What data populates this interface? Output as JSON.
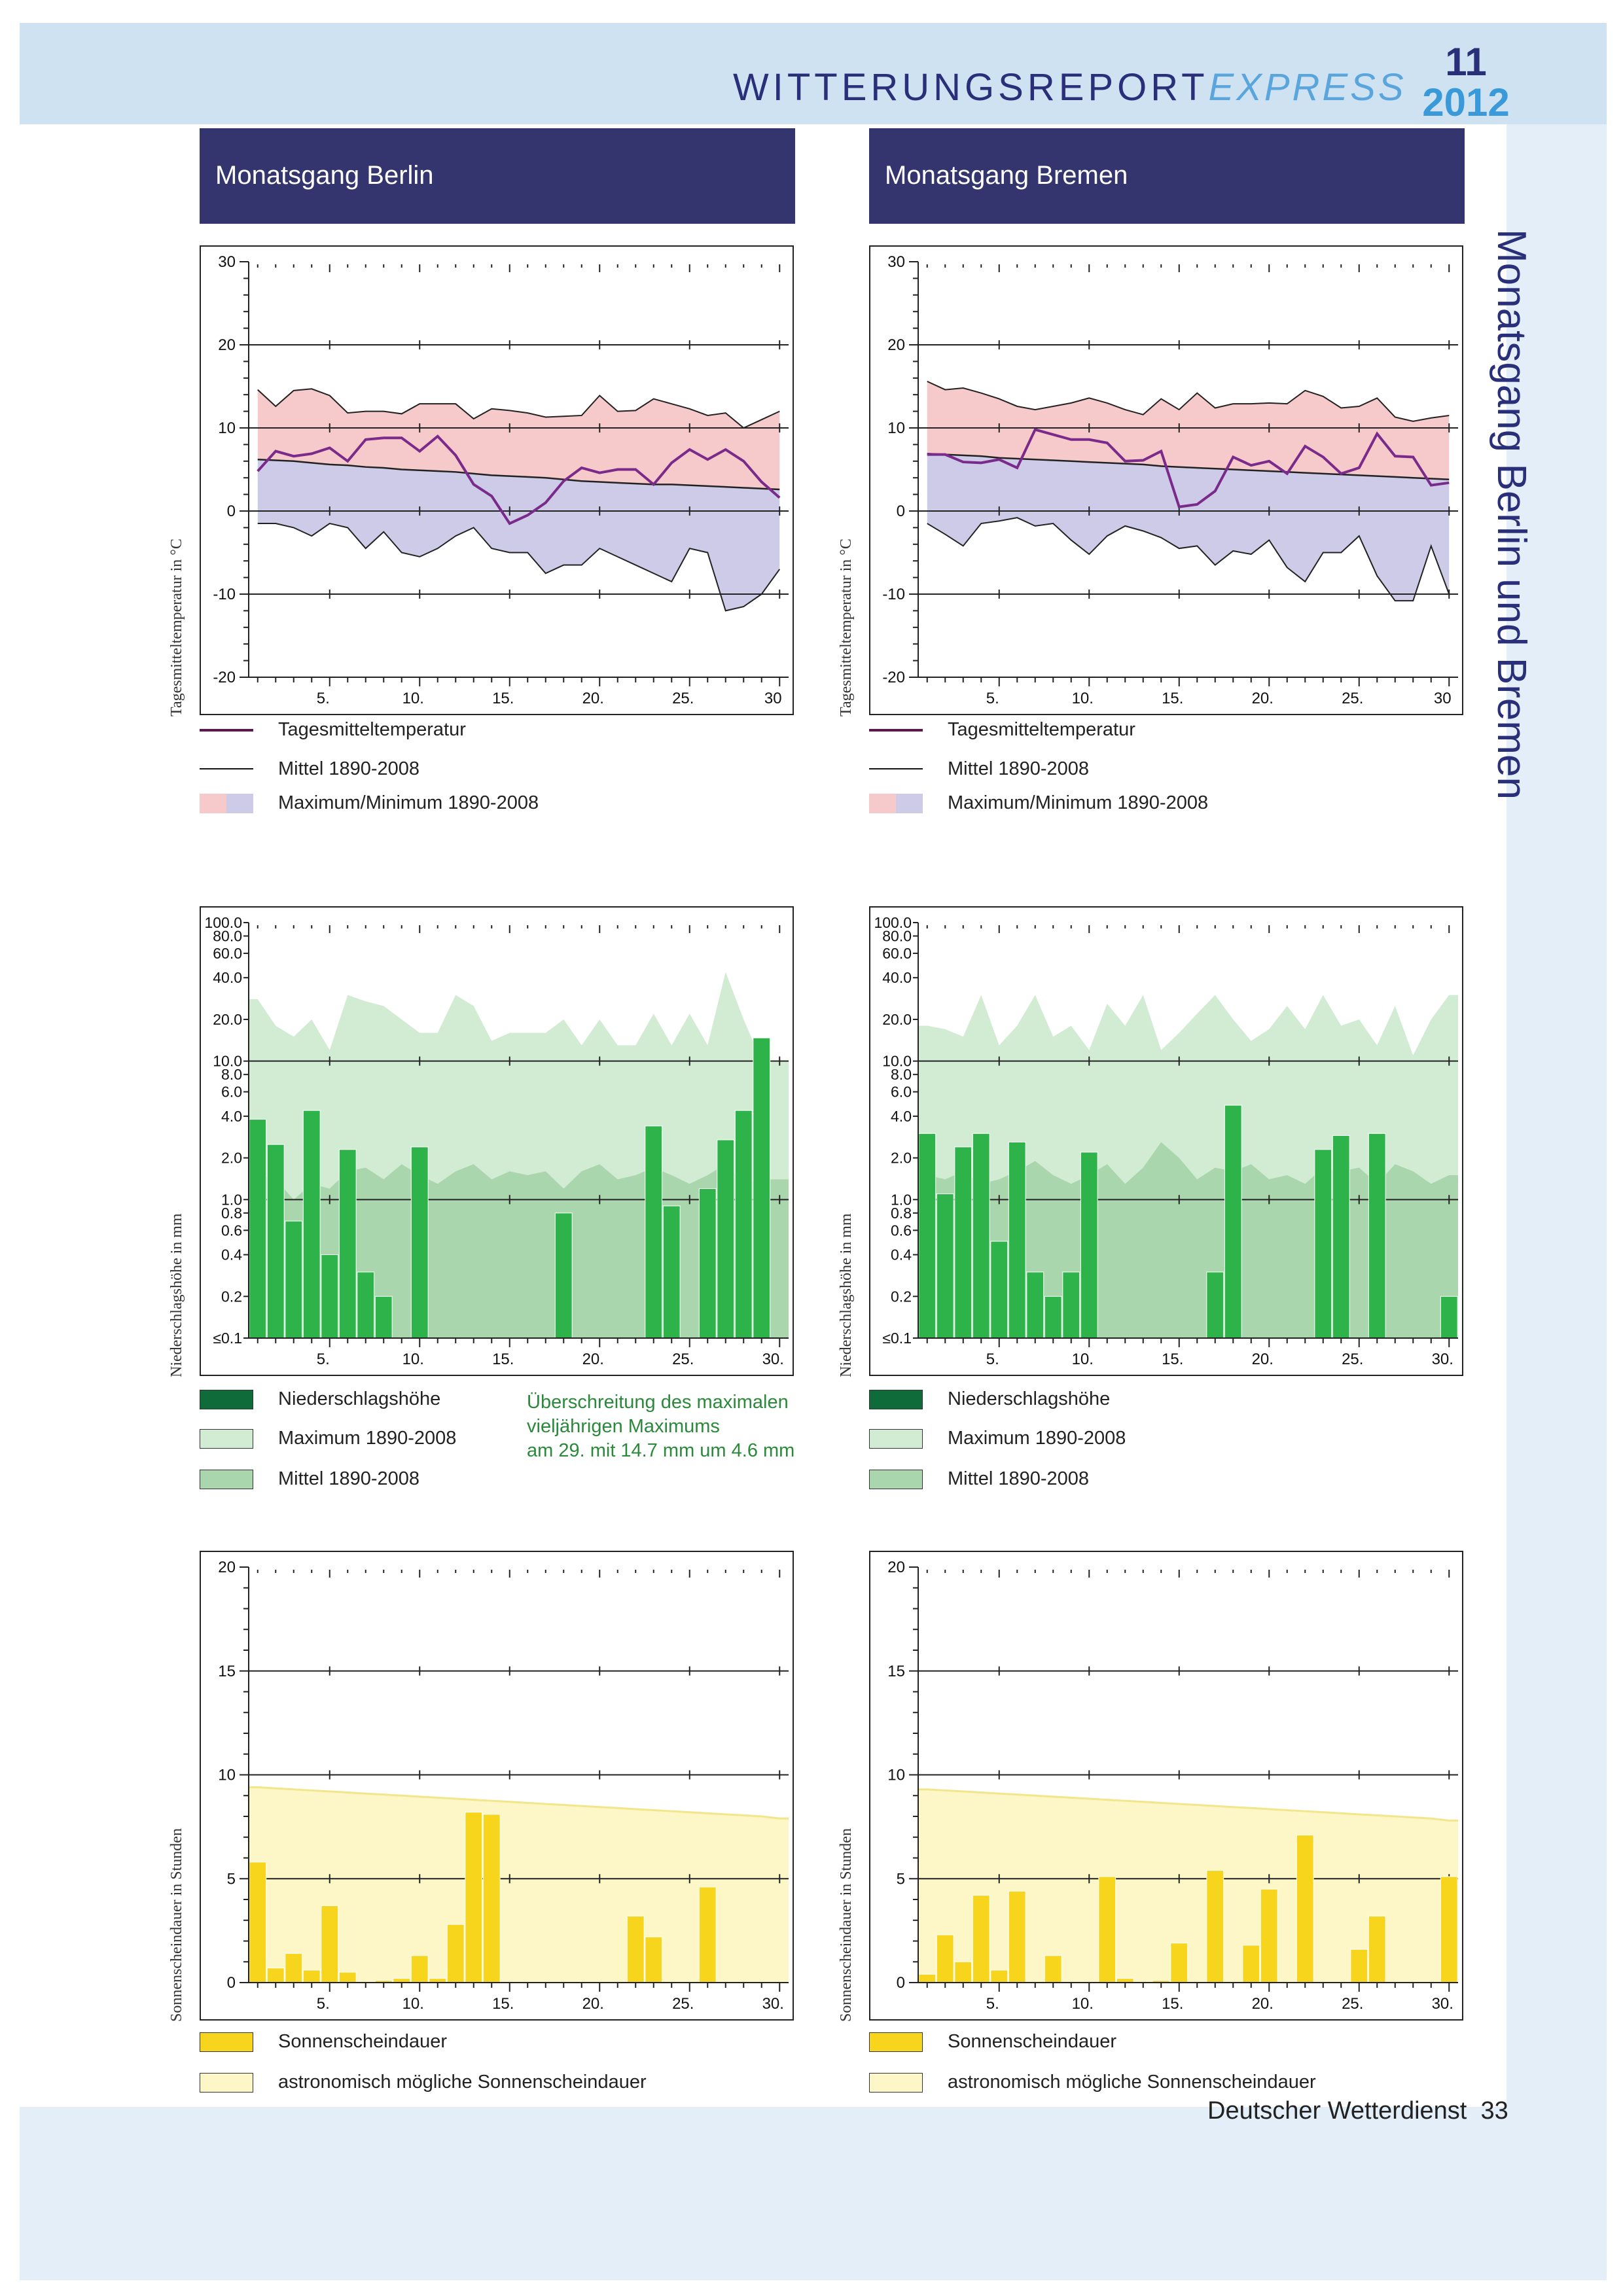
{
  "header": {
    "title_main": "WITTERUNGSREPORT",
    "title_italic": "EXPRESS",
    "issue_number": "11",
    "issue_year": "2012"
  },
  "side_title": "Monatsgang Berlin und Bremen",
  "columns": [
    {
      "id": "berlin",
      "heading": "Monatsgang Berlin"
    },
    {
      "id": "bremen",
      "heading": "Monatsgang Bremen"
    }
  ],
  "legends": {
    "temperature": [
      "Tagesmitteltemperatur",
      "Mittel 1890-2008",
      "Maximum/Minimum 1890-2008"
    ],
    "precipitation": [
      "Niederschlagshöhe",
      "Maximum 1890-2008",
      "Mittel 1890-2008"
    ],
    "sunshine": [
      "Sonnenscheindauer",
      "astronomisch mögliche Sonnenscheindauer"
    ]
  },
  "annotation": {
    "line1": "Überschreitung des maximalen",
    "line2": "vieljährigen Maximums",
    "line3": "am 29. mit 14.7 mm um 4.6 mm"
  },
  "footer": {
    "publisher": "Deutscher Wetterdienst",
    "page": "33"
  },
  "colors": {
    "header_band": "#cfe2f2",
    "column_header": "#34346e",
    "title_dark": "#2a2f7a",
    "title_light": "#3a9ad9",
    "temp_line": "#7a2a8a",
    "temp_max_fill": "#f6c9ca",
    "temp_min_fill": "#cdcbe7",
    "precip_bar": "#2db34a",
    "precip_max_fill": "#d2ecd4",
    "precip_mean_fill": "#a9d6ad",
    "sun_bar": "#f7d51c",
    "sun_possible_fill": "#fdf6c6"
  },
  "chart_data": [
    {
      "id": "berlin-temp",
      "type": "line",
      "ylabel": "Tagesmitteltemperatur in °C",
      "ylim": [
        -20,
        30
      ],
      "yticks": [
        -20,
        -10,
        0,
        10,
        20,
        30
      ],
      "xlim": [
        1,
        30
      ],
      "xticks": [
        5,
        10,
        15,
        20,
        25,
        30
      ],
      "xtick_labels": [
        "5.",
        "10.",
        "15.",
        "20.",
        "25.",
        "30"
      ],
      "x": [
        1,
        2,
        3,
        4,
        5,
        6,
        7,
        8,
        9,
        10,
        11,
        12,
        13,
        14,
        15,
        16,
        17,
        18,
        19,
        20,
        21,
        22,
        23,
        24,
        25,
        26,
        27,
        28,
        29,
        30
      ],
      "series": [
        {
          "name": "Tagesmitteltemperatur",
          "values": [
            4.8,
            7.2,
            6.6,
            6.9,
            7.6,
            6.0,
            8.6,
            8.8,
            8.8,
            7.2,
            9.0,
            6.7,
            3.2,
            1.8,
            -1.5,
            -0.5,
            1.0,
            3.6,
            5.2,
            4.6,
            5.0,
            5.0,
            3.2,
            5.8,
            7.4,
            6.2,
            7.4,
            6.0,
            3.5,
            1.6
          ]
        },
        {
          "name": "Mittel 1890-2008",
          "values": [
            6.2,
            6.1,
            6.0,
            5.8,
            5.6,
            5.5,
            5.3,
            5.2,
            5.0,
            4.9,
            4.8,
            4.7,
            4.5,
            4.3,
            4.2,
            4.1,
            4.0,
            3.8,
            3.6,
            3.5,
            3.4,
            3.3,
            3.2,
            3.2,
            3.1,
            3.0,
            2.9,
            2.8,
            2.7,
            2.6
          ]
        },
        {
          "name": "Maximum 1890-2008",
          "values": [
            14.6,
            12.6,
            14.5,
            14.7,
            13.9,
            11.8,
            12.0,
            12.0,
            11.7,
            12.9,
            12.9,
            12.9,
            11.1,
            12.3,
            12.1,
            11.8,
            11.3,
            11.4,
            11.5,
            13.9,
            12.0,
            12.1,
            13.5,
            12.9,
            12.3,
            11.5,
            11.8,
            10.0,
            11.0,
            12.0
          ]
        },
        {
          "name": "Minimum 1890-2008",
          "values": [
            -1.5,
            -1.5,
            -2.0,
            -3.0,
            -1.5,
            -2.0,
            -4.5,
            -2.5,
            -5.0,
            -5.5,
            -4.5,
            -3.0,
            -2.0,
            -4.5,
            -5.0,
            -5.0,
            -7.5,
            -6.5,
            -6.5,
            -4.5,
            -5.5,
            -6.5,
            -7.5,
            -8.5,
            -4.5,
            -5.0,
            -12.0,
            -11.5,
            -10.0,
            -7.0
          ]
        }
      ]
    },
    {
      "id": "bremen-temp",
      "type": "line",
      "ylabel": "Tagesmitteltemperatur in °C",
      "ylim": [
        -20,
        30
      ],
      "yticks": [
        -20,
        -10,
        0,
        10,
        20,
        30
      ],
      "xlim": [
        1,
        30
      ],
      "xticks": [
        5,
        10,
        15,
        20,
        25,
        30
      ],
      "xtick_labels": [
        "5.",
        "10.",
        "15.",
        "20.",
        "25.",
        "30"
      ],
      "x": [
        1,
        2,
        3,
        4,
        5,
        6,
        7,
        8,
        9,
        10,
        11,
        12,
        13,
        14,
        15,
        16,
        17,
        18,
        19,
        20,
        21,
        22,
        23,
        24,
        25,
        26,
        27,
        28,
        29,
        30
      ],
      "series": [
        {
          "name": "Tagesmitteltemperatur",
          "values": [
            6.8,
            6.8,
            5.9,
            5.8,
            6.2,
            5.2,
            9.8,
            9.2,
            8.6,
            8.6,
            8.2,
            6.0,
            6.1,
            7.2,
            0.5,
            0.8,
            2.4,
            6.5,
            5.5,
            6.0,
            4.5,
            7.8,
            6.5,
            4.5,
            5.2,
            9.3,
            6.6,
            6.5,
            3.1,
            3.4
          ]
        },
        {
          "name": "Mittel 1890-2008",
          "values": [
            6.9,
            6.8,
            6.7,
            6.6,
            6.4,
            6.3,
            6.2,
            6.1,
            6.0,
            5.9,
            5.8,
            5.7,
            5.6,
            5.4,
            5.3,
            5.2,
            5.1,
            5.0,
            4.9,
            4.8,
            4.7,
            4.6,
            4.5,
            4.4,
            4.3,
            4.2,
            4.1,
            4.0,
            3.9,
            3.8
          ]
        },
        {
          "name": "Maximum 1890-2008",
          "values": [
            15.6,
            14.6,
            14.8,
            14.2,
            13.5,
            12.6,
            12.2,
            12.6,
            13.0,
            13.6,
            13.0,
            12.2,
            11.6,
            13.5,
            12.2,
            14.2,
            12.4,
            12.9,
            12.9,
            13.0,
            12.9,
            14.5,
            13.8,
            12.4,
            12.6,
            13.6,
            11.3,
            10.8,
            11.2,
            11.5
          ]
        },
        {
          "name": "Minimum 1890-2008",
          "values": [
            -1.5,
            -2.8,
            -4.2,
            -1.5,
            -1.2,
            -0.8,
            -1.8,
            -1.5,
            -3.5,
            -5.2,
            -3.0,
            -1.8,
            -2.4,
            -3.2,
            -4.5,
            -4.2,
            -6.5,
            -4.8,
            -5.2,
            -3.5,
            -6.8,
            -8.5,
            -5.0,
            -5.0,
            -3.0,
            -7.8,
            -10.8,
            -10.8,
            -4.2,
            -10.0
          ]
        }
      ]
    },
    {
      "id": "berlin-precip",
      "type": "bar",
      "ylabel": "Niederschlagshöhe in mm",
      "yscale": "log",
      "ylim": [
        0.1,
        100.0
      ],
      "ytick_labels": [
        "≤0.1",
        "0.2",
        "0.4",
        "0.6",
        "0.8",
        "1.0",
        "2.0",
        "4.0",
        "6.0",
        "8.0",
        "10.0",
        "20.0",
        "40.0",
        "60.0",
        "80.0",
        "100.0"
      ],
      "ytick_values": [
        0.1,
        0.2,
        0.4,
        0.6,
        0.8,
        1.0,
        2.0,
        4.0,
        6.0,
        8.0,
        10.0,
        20.0,
        40.0,
        60.0,
        80.0,
        100.0
      ],
      "xlim": [
        1,
        30
      ],
      "xticks": [
        5,
        10,
        15,
        20,
        25,
        30
      ],
      "xtick_labels": [
        "5.",
        "10.",
        "15.",
        "20.",
        "25.",
        "30."
      ],
      "x": [
        1,
        2,
        3,
        4,
        5,
        6,
        7,
        8,
        9,
        10,
        11,
        12,
        13,
        14,
        15,
        16,
        17,
        18,
        19,
        20,
        21,
        22,
        23,
        24,
        25,
        26,
        27,
        28,
        29,
        30
      ],
      "series": [
        {
          "name": "Niederschlagshöhe",
          "values": [
            3.8,
            2.5,
            0.7,
            4.4,
            0.4,
            2.3,
            0.3,
            0.2,
            0.1,
            2.4,
            0.1,
            0.1,
            0.1,
            0.1,
            0.1,
            0.1,
            0.1,
            0.8,
            0.1,
            0.1,
            0.1,
            0.1,
            3.4,
            0.9,
            0.1,
            1.2,
            2.7,
            4.4,
            14.7,
            0.1
          ]
        },
        {
          "name": "Maximum 1890-2008",
          "values": [
            28,
            18,
            15,
            20,
            12,
            30,
            27,
            25,
            20,
            16,
            16,
            30,
            25,
            14,
            16,
            16,
            16,
            20,
            13,
            20,
            13,
            13,
            22,
            13,
            22,
            13,
            44,
            20,
            10,
            10
          ]
        },
        {
          "name": "Mittel 1890-2008",
          "values": [
            1.5,
            1.4,
            1.0,
            1.3,
            1.2,
            1.6,
            1.7,
            1.4,
            1.8,
            1.5,
            1.3,
            1.6,
            1.8,
            1.4,
            1.6,
            1.5,
            1.6,
            1.2,
            1.6,
            1.8,
            1.4,
            1.5,
            1.7,
            1.5,
            1.3,
            1.5,
            1.8,
            1.3,
            1.4,
            1.4
          ]
        }
      ]
    },
    {
      "id": "bremen-precip",
      "type": "bar",
      "ylabel": "Niederschlagshöhe in mm",
      "yscale": "log",
      "ylim": [
        0.1,
        100.0
      ],
      "ytick_labels": [
        "≤0.1",
        "0.2",
        "0.4",
        "0.6",
        "0.8",
        "1.0",
        "2.0",
        "4.0",
        "6.0",
        "8.0",
        "10.0",
        "20.0",
        "40.0",
        "60.0",
        "80.0",
        "100.0"
      ],
      "ytick_values": [
        0.1,
        0.2,
        0.4,
        0.6,
        0.8,
        1.0,
        2.0,
        4.0,
        6.0,
        8.0,
        10.0,
        20.0,
        40.0,
        60.0,
        80.0,
        100.0
      ],
      "xlim": [
        1,
        30
      ],
      "xticks": [
        5,
        10,
        15,
        20,
        25,
        30
      ],
      "xtick_labels": [
        "5.",
        "10.",
        "15.",
        "20.",
        "25.",
        "30."
      ],
      "x": [
        1,
        2,
        3,
        4,
        5,
        6,
        7,
        8,
        9,
        10,
        11,
        12,
        13,
        14,
        15,
        16,
        17,
        18,
        19,
        20,
        21,
        22,
        23,
        24,
        25,
        26,
        27,
        28,
        29,
        30
      ],
      "series": [
        {
          "name": "Niederschlagshöhe",
          "values": [
            3.0,
            1.1,
            2.4,
            3.0,
            0.5,
            2.6,
            0.3,
            0.2,
            0.3,
            2.2,
            0.1,
            0.1,
            0.1,
            0.1,
            0.1,
            0.1,
            0.3,
            4.8,
            0.1,
            0.1,
            0.1,
            0.1,
            2.3,
            2.9,
            0.1,
            3.0,
            0.1,
            0.1,
            0.1,
            0.2
          ]
        },
        {
          "name": "Maximum 1890-2008",
          "values": [
            18,
            17,
            15,
            30,
            13,
            18,
            30,
            15,
            18,
            12,
            26,
            18,
            30,
            12,
            16,
            22,
            30,
            20,
            14,
            17,
            25,
            17,
            30,
            18,
            20,
            13,
            25,
            11,
            20,
            30
          ]
        },
        {
          "name": "Mittel 1890-2008",
          "values": [
            1.5,
            1.4,
            1.6,
            1.3,
            1.4,
            1.6,
            1.9,
            1.5,
            1.3,
            1.5,
            1.8,
            1.3,
            1.7,
            2.6,
            2.0,
            1.4,
            1.7,
            1.6,
            1.8,
            1.4,
            1.5,
            1.3,
            1.7,
            1.6,
            1.7,
            1.3,
            1.8,
            1.6,
            1.3,
            1.5
          ]
        }
      ]
    },
    {
      "id": "berlin-sun",
      "type": "bar",
      "ylabel": "Sonnenscheindauer in Stunden",
      "ylim": [
        0,
        20
      ],
      "yticks": [
        0,
        5,
        10,
        15,
        20
      ],
      "xlim": [
        1,
        30
      ],
      "xticks": [
        5,
        10,
        15,
        20,
        25,
        30
      ],
      "xtick_labels": [
        "5.",
        "10.",
        "15.",
        "20.",
        "25.",
        "30."
      ],
      "x": [
        1,
        2,
        3,
        4,
        5,
        6,
        7,
        8,
        9,
        10,
        11,
        12,
        13,
        14,
        15,
        16,
        17,
        18,
        19,
        20,
        21,
        22,
        23,
        24,
        25,
        26,
        27,
        28,
        29,
        30
      ],
      "series": [
        {
          "name": "Sonnenscheindauer",
          "values": [
            5.8,
            0.7,
            1.4,
            0.6,
            3.7,
            0.5,
            0.0,
            0.1,
            0.2,
            1.3,
            0.2,
            2.8,
            8.2,
            8.1,
            0.0,
            0.0,
            0.0,
            0.0,
            0.0,
            0.0,
            0.0,
            3.2,
            2.2,
            0.0,
            0.0,
            4.6,
            0.0,
            0.0,
            0.0,
            0.0
          ]
        },
        {
          "name": "astronomisch mögliche Sonnenscheindauer",
          "values": [
            9.4,
            9.35,
            9.3,
            9.25,
            9.2,
            9.15,
            9.1,
            9.05,
            9.0,
            8.95,
            8.9,
            8.85,
            8.8,
            8.75,
            8.7,
            8.65,
            8.6,
            8.55,
            8.5,
            8.45,
            8.4,
            8.35,
            8.3,
            8.25,
            8.2,
            8.15,
            8.1,
            8.05,
            8.0,
            7.9
          ]
        }
      ]
    },
    {
      "id": "bremen-sun",
      "type": "bar",
      "ylabel": "Sonnenscheindauer in Stunden",
      "ylim": [
        0,
        20
      ],
      "yticks": [
        0,
        5,
        10,
        15,
        20
      ],
      "xlim": [
        1,
        30
      ],
      "xticks": [
        5,
        10,
        15,
        20,
        25,
        30
      ],
      "xtick_labels": [
        "5.",
        "10.",
        "15.",
        "20.",
        "25.",
        "30."
      ],
      "x": [
        1,
        2,
        3,
        4,
        5,
        6,
        7,
        8,
        9,
        10,
        11,
        12,
        13,
        14,
        15,
        16,
        17,
        18,
        19,
        20,
        21,
        22,
        23,
        24,
        25,
        26,
        27,
        28,
        29,
        30
      ],
      "series": [
        {
          "name": "Sonnenscheindauer",
          "values": [
            0.4,
            2.3,
            1.0,
            4.2,
            0.6,
            4.4,
            0.0,
            1.3,
            0.0,
            0.0,
            5.1,
            0.2,
            0.0,
            0.1,
            1.9,
            0.0,
            5.4,
            0.0,
            1.8,
            4.5,
            0.0,
            7.1,
            0.0,
            0.0,
            1.6,
            3.2,
            0.0,
            0.0,
            0.0,
            5.1
          ]
        },
        {
          "name": "astronomisch mögliche Sonnenscheindauer",
          "values": [
            9.3,
            9.25,
            9.2,
            9.15,
            9.1,
            9.05,
            9.0,
            8.95,
            8.9,
            8.85,
            8.8,
            8.75,
            8.7,
            8.65,
            8.6,
            8.55,
            8.5,
            8.45,
            8.4,
            8.35,
            8.3,
            8.25,
            8.2,
            8.15,
            8.1,
            8.05,
            8.0,
            7.95,
            7.9,
            7.8
          ]
        }
      ]
    }
  ]
}
